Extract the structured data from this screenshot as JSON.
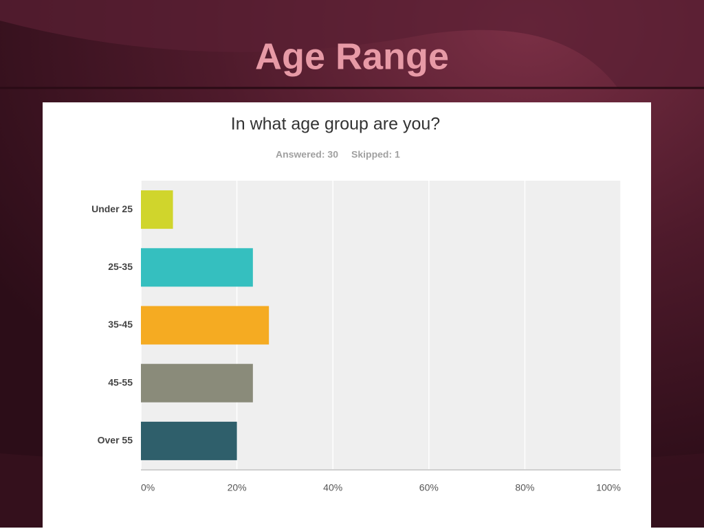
{
  "slide_title": "Age Range",
  "chart_data": {
    "type": "bar",
    "orientation": "horizontal",
    "title": "In what age group are you?",
    "answered": "Answered: 30",
    "skipped": "Skipped: 1",
    "categories": [
      "Under 25",
      "25-35",
      "35-45",
      "45-55",
      "Over 55"
    ],
    "values": [
      6.67,
      23.33,
      26.67,
      23.33,
      20
    ],
    "colors": [
      "#d0d52c",
      "#35bfbf",
      "#f5ab22",
      "#8a8b7a",
      "#2f5f6b"
    ],
    "xlim": [
      0,
      100
    ],
    "xticks": [
      {
        "value": 0,
        "label": "0%"
      },
      {
        "value": 20,
        "label": "20%"
      },
      {
        "value": 40,
        "label": "40%"
      },
      {
        "value": 60,
        "label": "60%"
      },
      {
        "value": 80,
        "label": "80%"
      },
      {
        "value": 100,
        "label": "100%"
      }
    ],
    "grid": true
  }
}
